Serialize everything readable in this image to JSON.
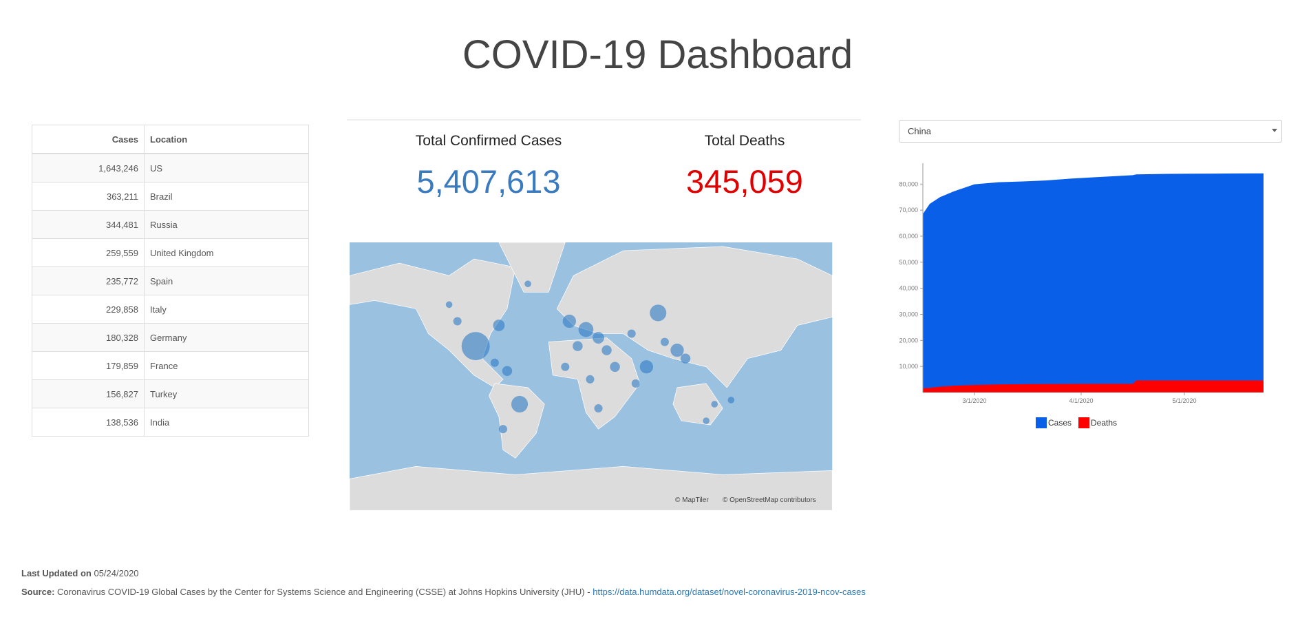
{
  "header": {
    "title": "COVID-19 Dashboard"
  },
  "table": {
    "columns": [
      "Cases",
      "Location"
    ],
    "rows": [
      [
        "1,643,246",
        "US"
      ],
      [
        "363,211",
        "Brazil"
      ],
      [
        "344,481",
        "Russia"
      ],
      [
        "259,559",
        "United Kingdom"
      ],
      [
        "235,772",
        "Spain"
      ],
      [
        "229,858",
        "Italy"
      ],
      [
        "180,328",
        "Germany"
      ],
      [
        "179,859",
        "France"
      ],
      [
        "156,827",
        "Turkey"
      ],
      [
        "138,536",
        "India"
      ]
    ]
  },
  "stats": {
    "confirmed": {
      "label": "Total Confirmed Cases",
      "value": "5,407,613"
    },
    "deaths": {
      "label": "Total Deaths",
      "value": "345,059"
    }
  },
  "map": {
    "attribution": [
      "© MapTiler",
      "© OpenStreetMap contributors"
    ]
  },
  "selector": {
    "selected": "China"
  },
  "chart_data": {
    "type": "area",
    "x": [
      "2/15/2020",
      "2/17/2020",
      "2/20/2020",
      "2/24/2020",
      "3/1/2020",
      "3/8/2020",
      "3/15/2020",
      "3/22/2020",
      "3/29/2020",
      "4/5/2020",
      "4/12/2020",
      "4/16/2020",
      "4/17/2020",
      "4/26/2020",
      "5/3/2020",
      "5/10/2020",
      "5/17/2020",
      "5/24/2020"
    ],
    "series": [
      {
        "name": "Cases",
        "color": "#0a5fe8",
        "values": [
          68500,
          72400,
          75000,
          77200,
          79900,
          80700,
          81000,
          81400,
          82100,
          82600,
          83100,
          83400,
          83700,
          83900,
          83960,
          84010,
          84060,
          84100
        ]
      },
      {
        "name": "Deaths",
        "color": "#ff0000",
        "values": [
          1666,
          1770,
          2236,
          2595,
          2870,
          3097,
          3199,
          3261,
          3304,
          3333,
          3341,
          3342,
          4636,
          4637,
          4637,
          4637,
          4638,
          4638
        ]
      }
    ],
    "xlim": [
      "2/15/2020",
      "5/24/2020"
    ],
    "xticks": [
      "3/1/2020",
      "4/1/2020",
      "5/1/2020"
    ],
    "ylim": [
      0,
      88000
    ],
    "yticks": [
      {
        "value": 10000,
        "label": "10,000"
      },
      {
        "value": 20000,
        "label": "20,000"
      },
      {
        "value": 30000,
        "label": "30,000"
      },
      {
        "value": 40000,
        "label": "40,000"
      },
      {
        "value": 50000,
        "label": "50,000"
      },
      {
        "value": 60000,
        "label": "60,000"
      },
      {
        "value": 70000,
        "label": "70,000"
      },
      {
        "value": 80000,
        "label": "80,000"
      }
    ]
  },
  "footer": {
    "updated_label": "Last Updated on",
    "updated": "05/24/2020",
    "source_label": "Source:",
    "source": "Coronavirus COVID-19 Global Cases by the Center for Systems Science and Engineering (CSSE) at Johns Hopkins University (JHU) -",
    "link": "https://data.humdata.org/dataset/novel-coronavirus-2019-ncov-cases"
  }
}
